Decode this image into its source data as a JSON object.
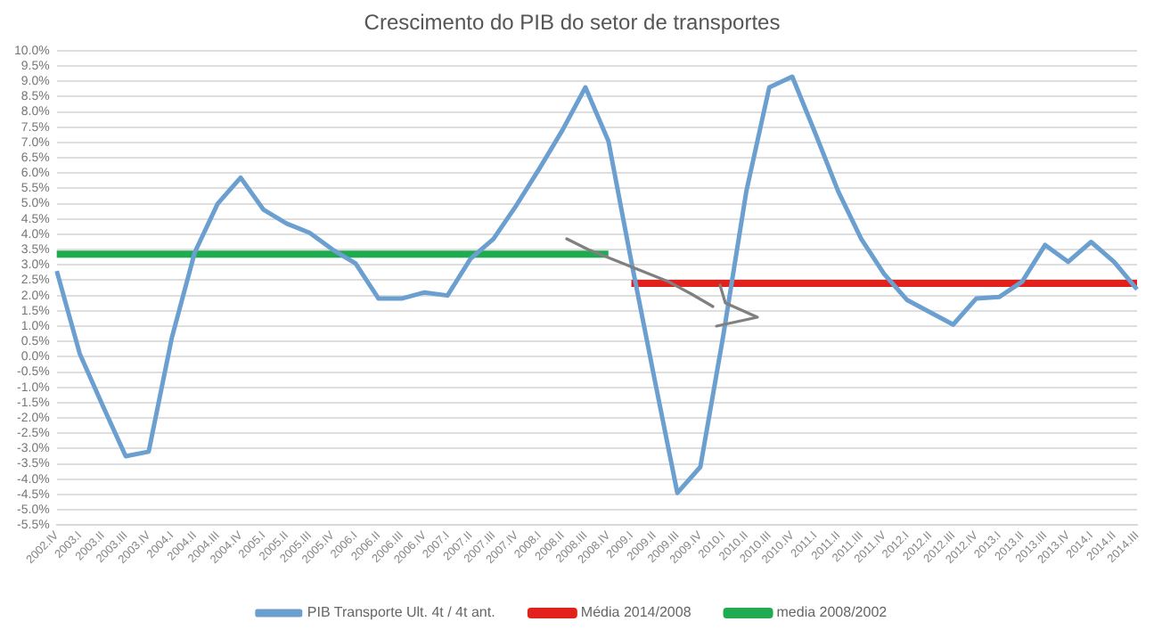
{
  "chart_data": {
    "type": "line",
    "title": "Crescimento do PIB do setor de transportes",
    "categories": [
      "2002.IV",
      "2003.I",
      "2003.II",
      "2003.III",
      "2003.IV",
      "2004.I",
      "2004.II",
      "2004.III",
      "2004.IV",
      "2005.I",
      "2005.II",
      "2005.III",
      "2005.IV",
      "2006.I",
      "2006.II",
      "2006.III",
      "2006.IV",
      "2007.I",
      "2007.II",
      "2007.III",
      "2007.IV",
      "2008.I",
      "2008.II",
      "2008.III",
      "2008.IV",
      "2009.I",
      "2009.II",
      "2009.III",
      "2009.IV",
      "2010.I",
      "2010.II",
      "2010.III",
      "2010.IV",
      "2011.I",
      "2011.II",
      "2011.III",
      "2011.IV",
      "2012.I",
      "2012.II",
      "2012.III",
      "2012.IV",
      "2013.I",
      "2013.II",
      "2013.III",
      "2013.IV",
      "2014.I",
      "2014.II",
      "2014.III"
    ],
    "series": [
      {
        "name": "PIB Transporte Ult. 4t / 4t ant.",
        "color": "#6a9fd0",
        "values": [
          2.8,
          0.1,
          -1.6,
          -3.25,
          -3.1,
          0.6,
          3.4,
          5.0,
          5.85,
          4.8,
          4.35,
          4.05,
          3.5,
          3.05,
          1.9,
          1.9,
          2.1,
          2.0,
          3.2,
          3.85,
          4.95,
          6.15,
          7.4,
          8.8,
          7.05,
          3.1,
          -0.7,
          -4.45,
          -3.6,
          0.7,
          5.4,
          8.8,
          9.15,
          7.3,
          5.4,
          3.85,
          2.7,
          1.85,
          1.45,
          1.05,
          1.9,
          1.95,
          2.45,
          3.65,
          3.1,
          3.75,
          3.1,
          2.2
        ]
      },
      {
        "name": "Média 2014/2008",
        "color": "#e3211c",
        "values": [
          null,
          null,
          null,
          null,
          null,
          null,
          null,
          null,
          null,
          null,
          null,
          null,
          null,
          null,
          null,
          null,
          null,
          null,
          null,
          null,
          null,
          null,
          null,
          null,
          null,
          2.4,
          2.4,
          2.4,
          2.4,
          2.4,
          2.4,
          2.4,
          2.4,
          2.4,
          2.4,
          2.4,
          2.4,
          2.4,
          2.4,
          2.4,
          2.4,
          2.4,
          2.4,
          2.4,
          2.4,
          2.4,
          2.4,
          2.4
        ]
      },
      {
        "name": "media 2008/2002",
        "color": "#1fab4f",
        "values": [
          3.35,
          3.35,
          3.35,
          3.35,
          3.35,
          3.35,
          3.35,
          3.35,
          3.35,
          3.35,
          3.35,
          3.35,
          3.35,
          3.35,
          3.35,
          3.35,
          3.35,
          3.35,
          3.35,
          3.35,
          3.35,
          3.35,
          3.35,
          3.35,
          3.35,
          null,
          null,
          null,
          null,
          null,
          null,
          null,
          null,
          null,
          null,
          null,
          null,
          null,
          null,
          null,
          null,
          null,
          null,
          null,
          null,
          null,
          null,
          null
        ]
      }
    ],
    "ylim": [
      -5.5,
      10
    ],
    "yticks": [
      {
        "value": -5.5,
        "label": "-5.5%"
      },
      {
        "value": -5,
        "label": "-5.0%"
      },
      {
        "value": -4.5,
        "label": "-4.5%"
      },
      {
        "value": -4,
        "label": "-4.0%"
      },
      {
        "value": -3.5,
        "label": "-3.5%"
      },
      {
        "value": -3,
        "label": "-3.0%"
      },
      {
        "value": -2.5,
        "label": "-2.5%"
      },
      {
        "value": -2,
        "label": "-2.0%"
      },
      {
        "value": -1.5,
        "label": "-1.5%"
      },
      {
        "value": -1,
        "label": "-1.0%"
      },
      {
        "value": -0.5,
        "label": "-0.5%"
      },
      {
        "value": 0,
        "label": "0.0%"
      },
      {
        "value": 0.5,
        "label": "0.5%"
      },
      {
        "value": 1,
        "label": "1.0%"
      },
      {
        "value": 1.5,
        "label": "1.5%"
      },
      {
        "value": 2,
        "label": "2.0%"
      },
      {
        "value": 2.5,
        "label": "2.5%"
      },
      {
        "value": 3,
        "label": "3.0%"
      },
      {
        "value": 3.5,
        "label": "3.5%"
      },
      {
        "value": 4,
        "label": "4.0%"
      },
      {
        "value": 4.5,
        "label": "4.5%"
      },
      {
        "value": 5,
        "label": "5.0%"
      },
      {
        "value": 5.5,
        "label": "5.5%"
      },
      {
        "value": 6,
        "label": "6.0%"
      },
      {
        "value": 6.5,
        "label": "6.5%"
      },
      {
        "value": 7,
        "label": "7.0%"
      },
      {
        "value": 7.5,
        "label": "7.5%"
      },
      {
        "value": 8,
        "label": "8.0%"
      },
      {
        "value": 8.5,
        "label": "8.5%"
      },
      {
        "value": 9,
        "label": "9.0%"
      },
      {
        "value": 9.5,
        "label": "9.5%"
      },
      {
        "value": 10,
        "label": "10.0%"
      }
    ],
    "grid": "y",
    "legend": "bottom",
    "marker": "none",
    "line_style": "solid"
  }
}
